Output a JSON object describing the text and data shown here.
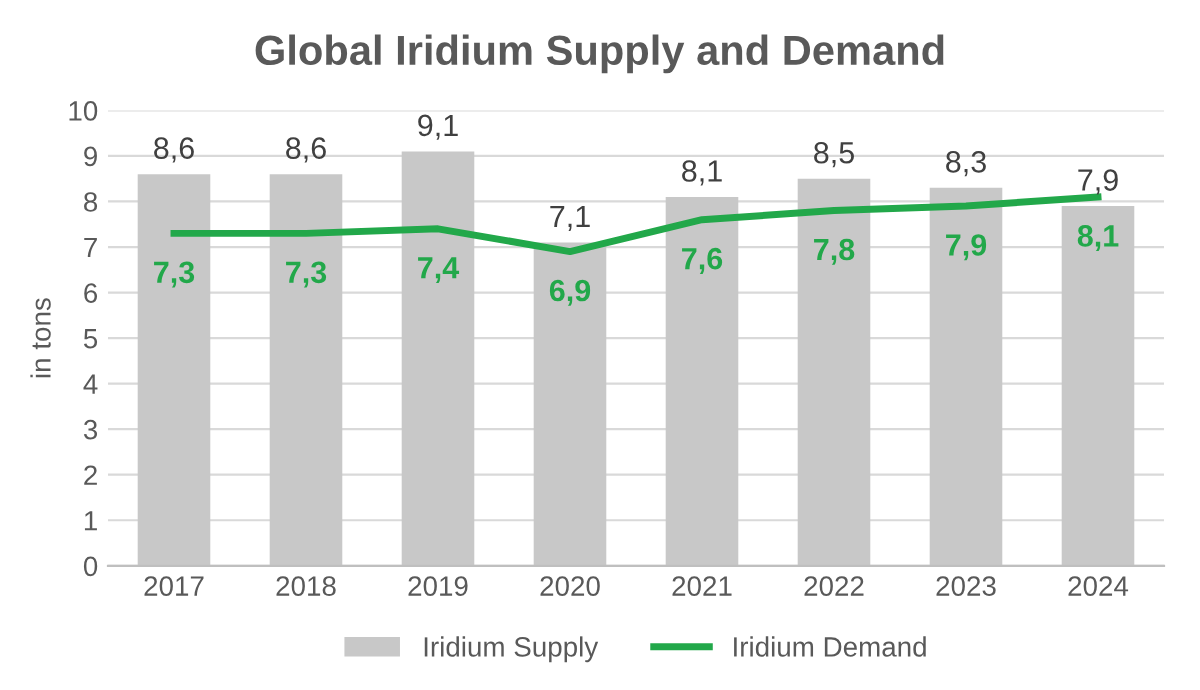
{
  "chart_data": {
    "type": "bar",
    "title": "Global Iridium Supply and Demand",
    "ylabel": "in tons",
    "categories": [
      "2017",
      "2018",
      "2019",
      "2020",
      "2021",
      "2022",
      "2023",
      "2024"
    ],
    "series": [
      {
        "name": "Iridium Supply",
        "color": "#c8c8c8",
        "values": [
          8.6,
          8.6,
          9.1,
          7.1,
          8.1,
          8.5,
          8.3,
          7.9
        ],
        "value_labels": [
          "8,6",
          "8,6",
          "9,1",
          "7,1",
          "8,1",
          "8,5",
          "8,3",
          "7,9"
        ]
      },
      {
        "name": "Iridium Demand",
        "type": "line",
        "color": "#22a84a",
        "values": [
          7.3,
          7.3,
          7.4,
          6.9,
          7.6,
          7.8,
          7.9,
          8.1
        ],
        "value_labels": [
          "7,3",
          "7,3",
          "7,4",
          "6,9",
          "7,6",
          "7,8",
          "7,9",
          "8,1"
        ]
      }
    ],
    "ylim": [
      0,
      10
    ],
    "yticks": [
      0,
      1,
      2,
      3,
      4,
      5,
      6,
      7,
      8,
      9,
      10
    ],
    "grid": "y",
    "legend": "bottom",
    "marker": "none",
    "line_style": "solid"
  }
}
